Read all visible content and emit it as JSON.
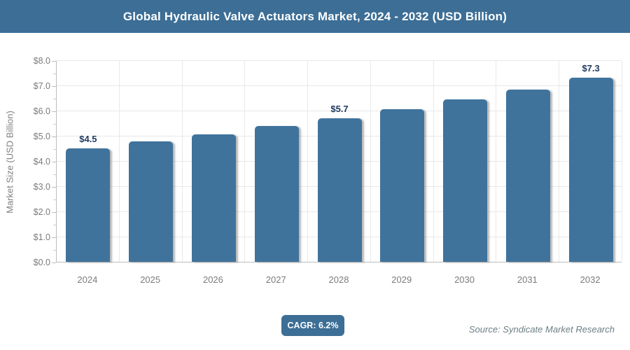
{
  "header": {
    "title": "Global Hydraulic Valve Actuators Market, 2024 - 2032 (USD Billion)"
  },
  "chart_data": {
    "type": "bar",
    "title": "Global Hydraulic Valve Actuators Market, 2024 - 2032 (USD Billion)",
    "categories": [
      "2024",
      "2025",
      "2026",
      "2027",
      "2028",
      "2029",
      "2030",
      "2031",
      "2032"
    ],
    "values": [
      4.5,
      4.78,
      5.06,
      5.38,
      5.7,
      6.06,
      6.44,
      6.84,
      7.3
    ],
    "bar_labels": [
      "$4.5",
      null,
      null,
      null,
      "$5.7",
      null,
      null,
      null,
      "$7.3"
    ],
    "xlabel": "",
    "ylabel": "Market Size (USD Billion)",
    "ylim": [
      0,
      8
    ],
    "ytick_labels": [
      "$8.0",
      "$7.0",
      "$6.0",
      "$5.0",
      "$4.0",
      "$3.0",
      "$2.0",
      "$1.0",
      "$0.0"
    ],
    "ytick_step": 1.0,
    "minor_tick_step": 0.5,
    "grid": true,
    "legend": false
  },
  "footer": {
    "cagr_label": "CAGR: 6.2%",
    "source": "Source: Syndicate Market Research"
  },
  "colors": {
    "banner_bg": "#3c6e96",
    "bar_fill": "#3f739c",
    "badge_bg": "#3c6e96",
    "grid_line": "#e8e8e8",
    "axis_line": "#bdbdbd",
    "tick_text": "#7b7b7b",
    "bar_label_text": "#1f3a60",
    "source_text": "#6d7e85"
  }
}
